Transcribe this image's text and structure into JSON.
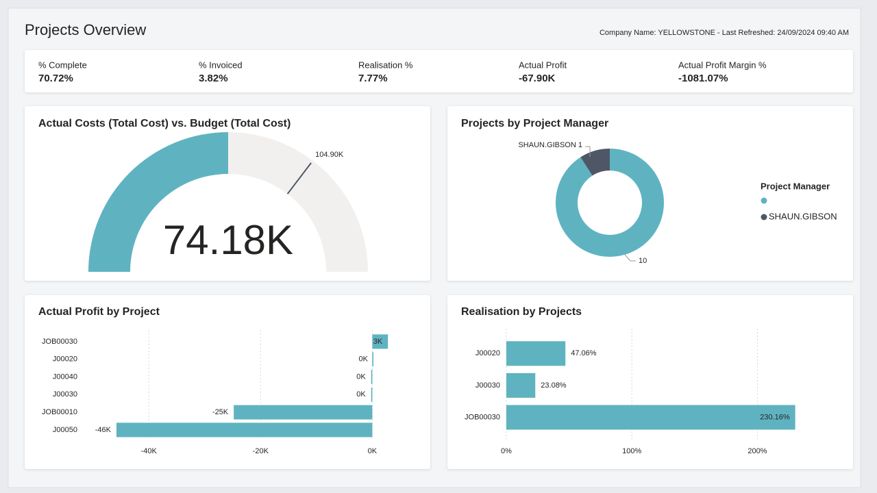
{
  "header": {
    "title": "Projects Overview",
    "info": "Company Name: YELLOWSTONE - Last Refreshed: 24/09/2024 09:40 AM"
  },
  "kpis": [
    {
      "label": "% Complete",
      "value": "70.72%"
    },
    {
      "label": "% Invoiced",
      "value": "3.82%"
    },
    {
      "label": "Realisation %",
      "value": "7.77%"
    },
    {
      "label": "Actual Profit",
      "value": "-67.90K"
    },
    {
      "label": "Actual Profit Margin %",
      "value": "-1081.07%"
    }
  ],
  "chart_data": [
    {
      "type": "gauge",
      "title": "Actual Costs (Total Cost) vs. Budget (Total Cost)",
      "value": 74180,
      "value_label": "74.18K",
      "target": 104900,
      "target_label": "104.90K",
      "ylim": [
        0,
        148360
      ],
      "color": "#5fb3c1",
      "track_color": "#f1f0ee"
    },
    {
      "type": "donut",
      "title": "Projects by Project Manager",
      "legend_title": "Project Manager",
      "categories": [
        null,
        "SHAUN.GIBSON"
      ],
      "values": [
        10,
        1
      ],
      "colors": [
        "#5fb3c1",
        "#4f5766"
      ],
      "legend": "right"
    },
    {
      "type": "hbar",
      "title": "Actual Profit by Project",
      "categories": [
        "JOB00030",
        "J00020",
        "J00040",
        "J00030",
        "JOB00010",
        "J00050"
      ],
      "values": [
        2800,
        200,
        -200,
        -200,
        -24800,
        -45800
      ],
      "value_labels": [
        "3K",
        "0K",
        "0K",
        "0K",
        "-25K",
        "-46K"
      ],
      "xlim": [
        -48000,
        4000
      ],
      "xticks": [
        {
          "value": -40000,
          "label": "-40K"
        },
        {
          "value": -20000,
          "label": "-20K"
        },
        {
          "value": 0,
          "label": "0K"
        }
      ],
      "color": "#5fb3c1",
      "grid": true
    },
    {
      "type": "hbar",
      "title": "Realisation by Projects",
      "categories": [
        "J00020",
        "J00030",
        "JOB00030"
      ],
      "values": [
        47.06,
        23.08,
        230.16
      ],
      "value_labels": [
        "47.06%",
        "23.08%",
        "230.16%"
      ],
      "xlim": [
        0,
        250
      ],
      "xticks": [
        {
          "value": 0,
          "label": "0%"
        },
        {
          "value": 100,
          "label": "100%"
        },
        {
          "value": 200,
          "label": "200%"
        }
      ],
      "color": "#5fb3c1",
      "grid": true
    }
  ]
}
